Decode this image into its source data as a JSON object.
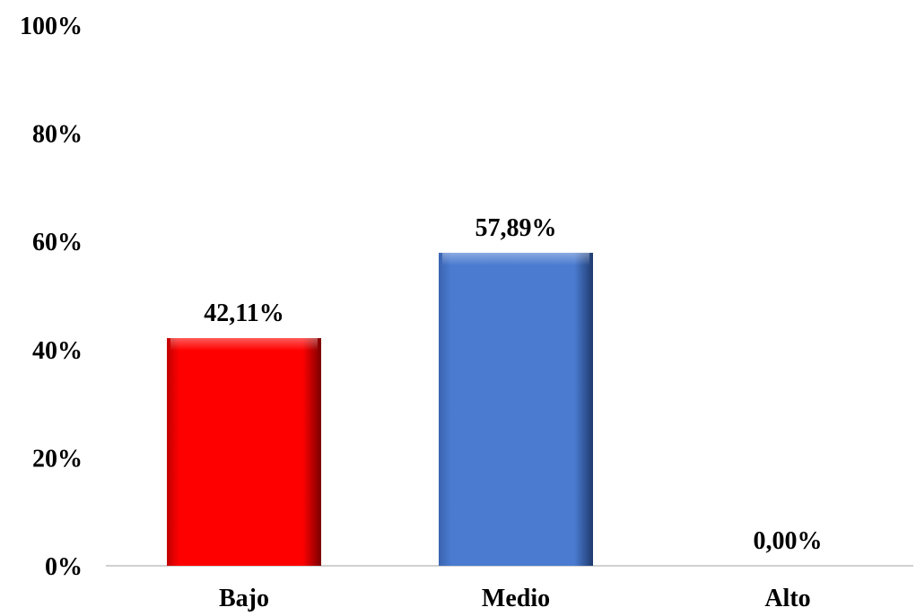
{
  "chart_data": {
    "type": "bar",
    "title": "",
    "xlabel": "",
    "ylabel": "",
    "categories": [
      "Bajo",
      "Medio",
      "Alto"
    ],
    "values": [
      42.11,
      57.89,
      0.0
    ],
    "data_labels": [
      "42,11%",
      "57,89%",
      "0,00%"
    ],
    "bar_colors": [
      "#ff0000",
      "#4a7bd0",
      "#4a7bd0"
    ],
    "ylim": [
      0,
      100
    ],
    "yticks": [
      0,
      20,
      40,
      60,
      80,
      100
    ],
    "ytick_labels": [
      "0%",
      "20%",
      "40%",
      "60%",
      "80%",
      "100%"
    ],
    "grid": false,
    "legend": "none"
  }
}
